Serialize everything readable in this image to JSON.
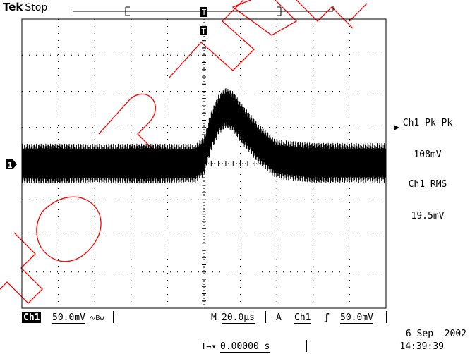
{
  "header": {
    "brand": "Tek",
    "run_status": "Stop"
  },
  "trigger_marker": "T",
  "channel_marker": "1",
  "measurements": [
    {
      "label": "Ch1 Pk-Pk",
      "value": "108mV"
    },
    {
      "label": "Ch1 RMS",
      "value": "19.5mV"
    }
  ],
  "status_bar": {
    "channel": "Ch1",
    "volts_div": "50.0mV",
    "coupling_symbol": "∿Bw",
    "timebase_prefix": "M",
    "timebase": "20.0µs",
    "trigger_prefix": "A",
    "trigger_source": "Ch1",
    "trigger_slope": "ʃ",
    "trigger_level": "50.0mV",
    "delay_marker": "T→▾",
    "delay": "0.00000 s"
  },
  "datetime": {
    "date": "6 Sep  2002",
    "time": "14:39:39"
  },
  "watermark": "FOR NEWS",
  "colors": {
    "trace": "#000000",
    "grid": "#000000",
    "watermark": "#ff0000",
    "background": "#ffffff"
  },
  "chart_data": {
    "type": "line",
    "xlabel": "",
    "ylabel": "",
    "series": [
      {
        "x": [
          -100,
          -60,
          -20,
          -5,
          0,
          4,
          8,
          12,
          16,
          20,
          30,
          40,
          60,
          100
        ],
        "y": [
          0,
          0,
          0,
          0,
          0.2,
          0.9,
          1.35,
          1.55,
          1.45,
          1.15,
          0.55,
          0.12,
          0.02,
          0.02
        ]
      }
    ],
    "noise_envelope_div": 0.55,
    "x_div_us": 20.0,
    "y_div_mV": 50.0,
    "xlim": [
      -100,
      100
    ],
    "ylim": [
      -4,
      4
    ],
    "grid": true
  }
}
